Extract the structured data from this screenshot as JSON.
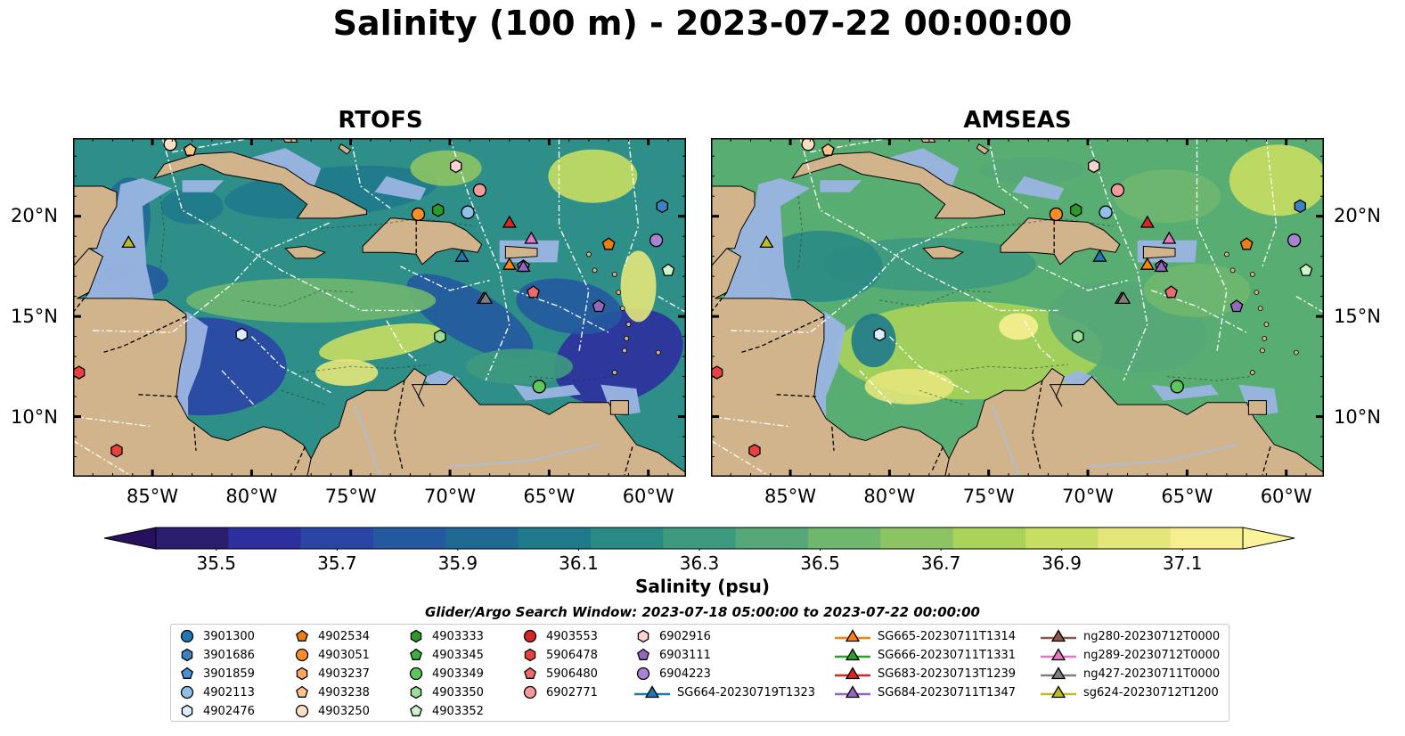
{
  "title": "Salinity (100 m) - 2023-07-22 00:00:00",
  "panels": [
    {
      "id": "rtofs",
      "title": "RTOFS"
    },
    {
      "id": "amseas",
      "title": "AMSEAS"
    }
  ],
  "lon_ticks": [
    "85°W",
    "80°W",
    "75°W",
    "70°W",
    "65°W",
    "60°W"
  ],
  "lat_ticks": [
    "20°N",
    "15°N",
    "10°N"
  ],
  "colorbar": {
    "label": "Salinity (psu)",
    "min": 35.4,
    "max": 37.2,
    "ticks": [
      "35.5",
      "35.7",
      "35.9",
      "36.1",
      "36.3",
      "36.5",
      "36.7",
      "36.9",
      "37.1"
    ],
    "colors": [
      "#2b1e6e",
      "#2c2f9e",
      "#2b45a6",
      "#25599f",
      "#1f6a95",
      "#1f7a8c",
      "#2a8b85",
      "#3e9a7f",
      "#56a878",
      "#6fb76f",
      "#8cc463",
      "#aad35a",
      "#c8de62",
      "#e4e67a",
      "#f7ee8f"
    ]
  },
  "map_colors": {
    "land": "#d2b48c",
    "shallow": "#9bb5e1",
    "rtofs_base": "#2d8f87",
    "amseas_base": "#58ad72"
  },
  "search_window": "Glider/Argo Search Window: 2023-07-18 05:00:00 to 2023-07-22 00:00:00",
  "legend": [
    {
      "label": "3901300",
      "marker": "circle",
      "color": "#1f77b4"
    },
    {
      "label": "3901686",
      "marker": "hexagon",
      "color": "#3b82c4"
    },
    {
      "label": "3901859",
      "marker": "pentagon",
      "color": "#4a90d9"
    },
    {
      "label": "4902113",
      "marker": "circle",
      "color": "#8fc1e8"
    },
    {
      "label": "4902476",
      "marker": "hexagon",
      "color": "#dbeeff"
    },
    {
      "label": "4902534",
      "marker": "pentagon",
      "color": "#f07d14"
    },
    {
      "label": "4903051",
      "marker": "circle",
      "color": "#ff8c2a"
    },
    {
      "label": "4903237",
      "marker": "hexagon",
      "color": "#ffa45c"
    },
    {
      "label": "4903238",
      "marker": "pentagon",
      "color": "#ffc48a"
    },
    {
      "label": "4903250",
      "marker": "circle",
      "color": "#ffe0c4"
    },
    {
      "label": "4903333",
      "marker": "hexagon",
      "color": "#2a9a2a"
    },
    {
      "label": "4903345",
      "marker": "pentagon",
      "color": "#3daf3d"
    },
    {
      "label": "4903349",
      "marker": "circle",
      "color": "#5cc85c"
    },
    {
      "label": "4903350",
      "marker": "hexagon",
      "color": "#98e098"
    },
    {
      "label": "4903352",
      "marker": "pentagon",
      "color": "#cdf5cd"
    },
    {
      "label": "4903553",
      "marker": "circle",
      "color": "#d62728"
    },
    {
      "label": "5906478",
      "marker": "hexagon",
      "color": "#e8423f"
    },
    {
      "label": "5906480",
      "marker": "pentagon",
      "color": "#ee6b6b"
    },
    {
      "label": "6902771",
      "marker": "circle",
      "color": "#f59a9a"
    },
    {
      "label": "6902916",
      "marker": "hexagon",
      "color": "#ffd1d1"
    },
    {
      "label": "6903111",
      "marker": "pentagon",
      "color": "#9467bd"
    },
    {
      "label": "6904223",
      "marker": "circle",
      "color": "#a883d4"
    },
    {
      "label": "SG664-20230719T1323",
      "marker": "triangle-line",
      "color": "#1f77b4"
    },
    {
      "label": "SG665-20230711T1314",
      "marker": "triangle-line",
      "color": "#ff7f0e"
    },
    {
      "label": "SG666-20230711T1331",
      "marker": "triangle-line",
      "color": "#2ca02c"
    },
    {
      "label": "SG683-20230713T1239",
      "marker": "triangle-line",
      "color": "#d62728"
    },
    {
      "label": "SG684-20230711T1347",
      "marker": "triangle-line",
      "color": "#9467bd"
    },
    {
      "label": "ng280-20230712T0000",
      "marker": "triangle-line",
      "color": "#8c564b"
    },
    {
      "label": "ng289-20230712T0000",
      "marker": "triangle-line",
      "color": "#e377c2"
    },
    {
      "label": "ng427-20230711T0000",
      "marker": "triangle-line",
      "color": "#7f7f7f"
    },
    {
      "label": "sg624-20230712T1200",
      "marker": "triangle-line",
      "color": "#bcbd22"
    }
  ],
  "markers": [
    {
      "id": "3901686",
      "marker": "hexagon",
      "color": "#3b82c4",
      "lon": -59.3,
      "lat": 20.5
    },
    {
      "id": "4902113",
      "marker": "circle",
      "color": "#8fc1e8",
      "lon": -69.1,
      "lat": 20.2
    },
    {
      "id": "4902476",
      "marker": "hexagon",
      "color": "#dbeeff",
      "lon": -80.5,
      "lat": 14.1
    },
    {
      "id": "4902534",
      "marker": "pentagon",
      "color": "#f07d14",
      "lon": -62.0,
      "lat": 18.6
    },
    {
      "id": "4903051",
      "marker": "circle",
      "color": "#ff8c2a",
      "lon": -71.6,
      "lat": 20.1
    },
    {
      "id": "4903238",
      "marker": "pentagon",
      "color": "#ffc48a",
      "lon": -83.1,
      "lat": 23.3
    },
    {
      "id": "4903250",
      "marker": "circle",
      "color": "#ffe0c4",
      "lon": -84.1,
      "lat": 23.6
    },
    {
      "id": "4903333",
      "marker": "hexagon",
      "color": "#2a9a2a",
      "lon": -70.6,
      "lat": 20.3
    },
    {
      "id": "4903349",
      "marker": "circle",
      "color": "#5cc85c",
      "lon": -65.5,
      "lat": 11.5
    },
    {
      "id": "4903350",
      "marker": "hexagon",
      "color": "#98e098",
      "lon": -70.5,
      "lat": 14.0
    },
    {
      "id": "4903352",
      "marker": "pentagon",
      "color": "#cdf5cd",
      "lon": -59.0,
      "lat": 17.3
    },
    {
      "id": "5906478",
      "marker": "hexagon",
      "color": "#e8423f",
      "lon": -88.7,
      "lat": 12.2
    },
    {
      "id": "5906478b",
      "marker": "hexagon",
      "color": "#e8423f",
      "lon": -86.8,
      "lat": 8.3
    },
    {
      "id": "5906480",
      "marker": "pentagon",
      "color": "#ee6b6b",
      "lon": -65.8,
      "lat": 16.2
    },
    {
      "id": "6902771",
      "marker": "circle",
      "color": "#f59a9a",
      "lon": -68.5,
      "lat": 21.3
    },
    {
      "id": "6902916",
      "marker": "hexagon",
      "color": "#ffd1d1",
      "lon": -69.7,
      "lat": 22.5
    },
    {
      "id": "6903111",
      "marker": "pentagon",
      "color": "#9467bd",
      "lon": -62.5,
      "lat": 15.5
    },
    {
      "id": "6903111b",
      "marker": "pentagon",
      "color": "#9467bd",
      "lon": -66.3,
      "lat": 17.5
    },
    {
      "id": "6904223",
      "marker": "circle",
      "color": "#a883d4",
      "lon": -59.6,
      "lat": 18.8
    },
    {
      "id": "SG664",
      "marker": "triangle",
      "color": "#1f77b4",
      "lon": -69.4,
      "lat": 18.0
    },
    {
      "id": "SG665",
      "marker": "triangle",
      "color": "#ff7f0e",
      "lon": -67.0,
      "lat": 17.6
    },
    {
      "id": "SG683",
      "marker": "triangle",
      "color": "#d62728",
      "lon": -67.0,
      "lat": 19.7
    },
    {
      "id": "SG684",
      "marker": "triangle",
      "color": "#9467bd",
      "lon": -66.3,
      "lat": 17.5
    },
    {
      "id": "ng280",
      "marker": "triangle",
      "color": "#8c564b",
      "lon": -68.3,
      "lat": 15.9
    },
    {
      "id": "ng289",
      "marker": "triangle",
      "color": "#e377c2",
      "lon": -65.9,
      "lat": 18.9
    },
    {
      "id": "ng427",
      "marker": "triangle",
      "color": "#7f7f7f",
      "lon": -68.2,
      "lat": 15.9
    },
    {
      "id": "sg624",
      "marker": "triangle",
      "color": "#bcbd22",
      "lon": -86.2,
      "lat": 18.7
    }
  ]
}
